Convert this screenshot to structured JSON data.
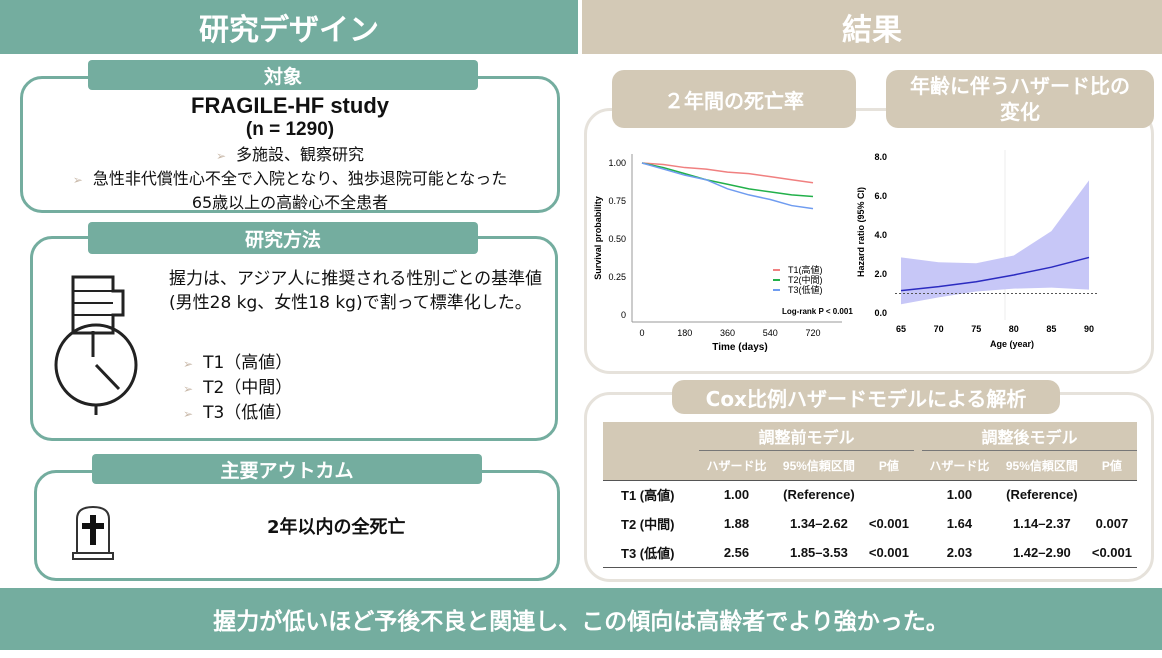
{
  "left_title": "研究デザイン",
  "right_title": "結果",
  "subjects": {
    "label": "対象",
    "study": "FRAGILE-HF study",
    "n": "(n = 1290)",
    "bullets": [
      "多施設、観察研究",
      "急性非代償性心不全で入院となり、独歩退院可能となった"
    ],
    "line3": "65歳以上の高齢心不全患者"
  },
  "methods": {
    "label": "研究方法",
    "text": "握力は、アジア人に推奨される性別ごとの基準値(男性28 kg、女性18 kg)で割って標準化した。",
    "groups": [
      "T1（高値）",
      "T2（中間）",
      "T3（低値）"
    ]
  },
  "outcome": {
    "label": "主要アウトカム",
    "text": "2年以内の全死亡"
  },
  "mortality_label": "２年間の死亡率",
  "hr_label": "年齢に伴うハザード比の変化",
  "cox_label": "Cox比例ハザードモデルによる解析",
  "table": {
    "group_headers": [
      "調整前モデル",
      "調整後モデル"
    ],
    "sub_headers": [
      "ハザード比",
      "95%信頼区間",
      "P値",
      "ハザード比",
      "95%信頼区間",
      "P値"
    ],
    "rows": [
      [
        "T1 (高値)",
        "1.00",
        "(Reference)",
        "",
        "1.00",
        "(Reference)",
        ""
      ],
      [
        "T2 (中間)",
        "1.88",
        "1.34–2.62",
        "<0.001",
        "1.64",
        "1.14–2.37",
        "0.007"
      ],
      [
        "T3 (低値)",
        "2.56",
        "1.85–3.53",
        "<0.001",
        "2.03",
        "1.42–2.90",
        "<0.001"
      ]
    ]
  },
  "conclusion": "握力が低いほど予後不良と関連し、この傾向は高齢者でより強かった。",
  "colors": {
    "teal": "#74ad9f",
    "beige": "#d3c9b6"
  },
  "chart_data": [
    {
      "type": "line",
      "title": "",
      "xlabel": "Time (days)",
      "ylabel": "Survival probability",
      "xticks": [
        "0",
        "180",
        "360",
        "540",
        "720"
      ],
      "yticks": [
        "0",
        "0.25",
        "0.50",
        "0.75",
        "1.00"
      ],
      "xlim": [
        0,
        720
      ],
      "ylim": [
        0,
        1
      ],
      "x": [
        0,
        90,
        180,
        270,
        360,
        450,
        540,
        630,
        720
      ],
      "series": [
        {
          "name": "T1(高値)",
          "color": "#f08080",
          "values": [
            1,
            0.99,
            0.97,
            0.96,
            0.94,
            0.93,
            0.91,
            0.89,
            0.87
          ]
        },
        {
          "name": "T2(中間)",
          "color": "#22b04a",
          "values": [
            1,
            0.97,
            0.93,
            0.89,
            0.86,
            0.83,
            0.81,
            0.79,
            0.78
          ]
        },
        {
          "name": "T3(低値)",
          "color": "#6f9cf0",
          "values": [
            1,
            0.96,
            0.92,
            0.89,
            0.83,
            0.79,
            0.76,
            0.72,
            0.7
          ]
        }
      ],
      "annotation": "Log-rank P < 0.001",
      "legend": "bottom-right"
    },
    {
      "type": "area",
      "title": "",
      "xlabel": "Age (year)",
      "ylabel": "Hazard ratio (95% CI)",
      "xticks": [
        "65",
        "70",
        "75",
        "80",
        "85",
        "90"
      ],
      "yticks": [
        "0.0",
        "2.0",
        "4.0",
        "6.0",
        "8.0"
      ],
      "xlim": [
        65,
        90
      ],
      "ylim": [
        0,
        8
      ],
      "x": [
        65,
        70,
        75,
        80,
        85,
        90
      ],
      "hr": [
        1.15,
        1.35,
        1.6,
        1.95,
        2.35,
        2.85
      ],
      "lower": [
        0.45,
        0.8,
        1.1,
        1.25,
        1.3,
        1.2
      ],
      "upper": [
        2.85,
        2.6,
        2.55,
        2.95,
        4.2,
        6.8
      ],
      "reference": 1.0
    }
  ]
}
